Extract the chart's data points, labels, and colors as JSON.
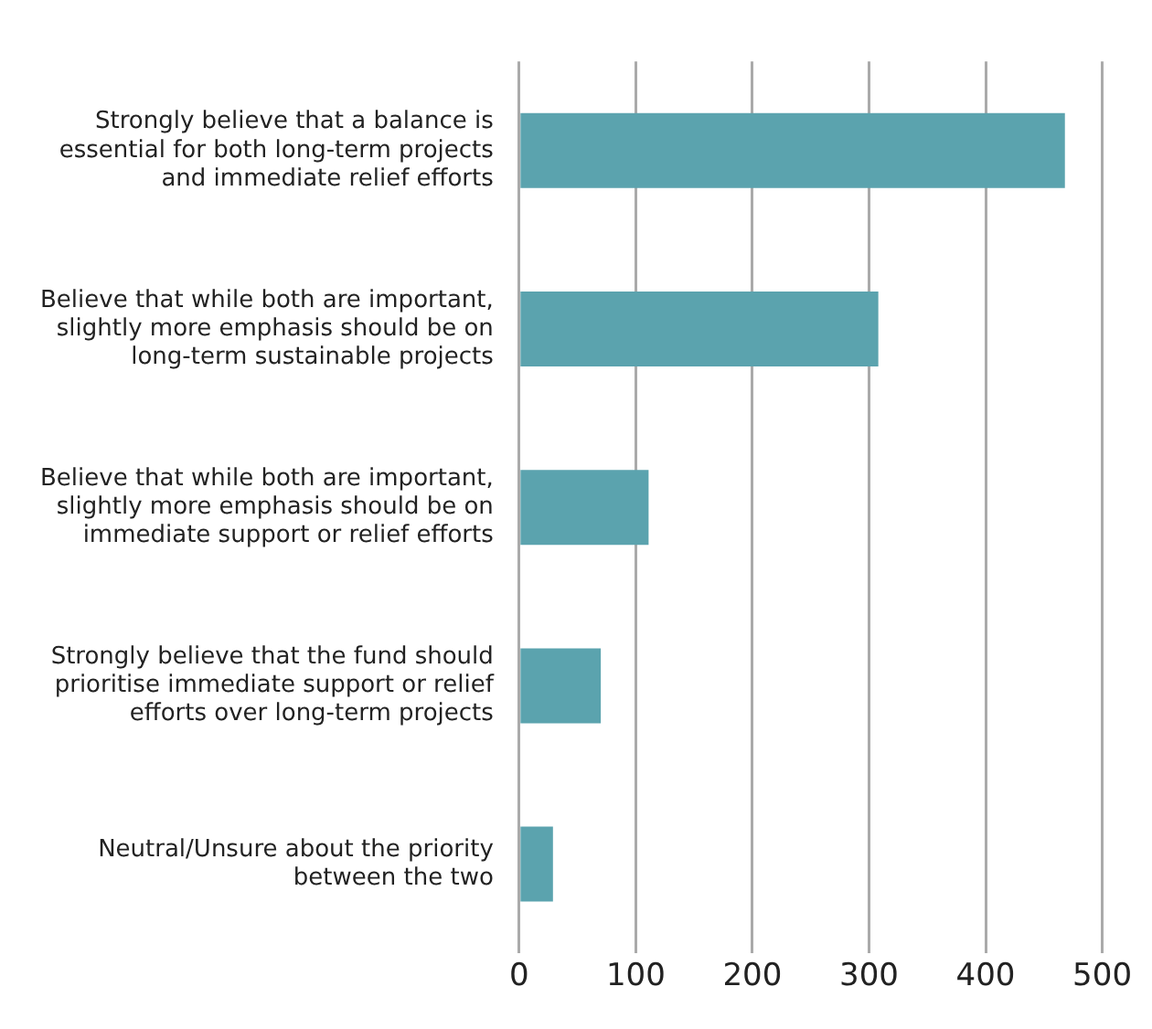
{
  "chart_data": {
    "type": "bar",
    "orientation": "horizontal",
    "categories": [
      "Strongly believe that a balance is essential for both long-term projects and immediate relief efforts",
      "Believe that while both are important, slightly more emphasis should be on long-term sustainable projects",
      "Believe that while both are important, slightly more emphasis should be on immediate support or relief efforts",
      "Strongly believe that the fund should prioritise immediate support or relief efforts over long-term projects",
      "Neutral/Unsure about the priority between the two"
    ],
    "values": [
      468,
      308,
      111,
      70,
      29
    ],
    "color": "#5ba3ae",
    "xlim": [
      0,
      500
    ],
    "xticks": [
      0,
      100,
      200,
      300,
      400,
      500
    ],
    "grid": "x",
    "legend": false
  }
}
